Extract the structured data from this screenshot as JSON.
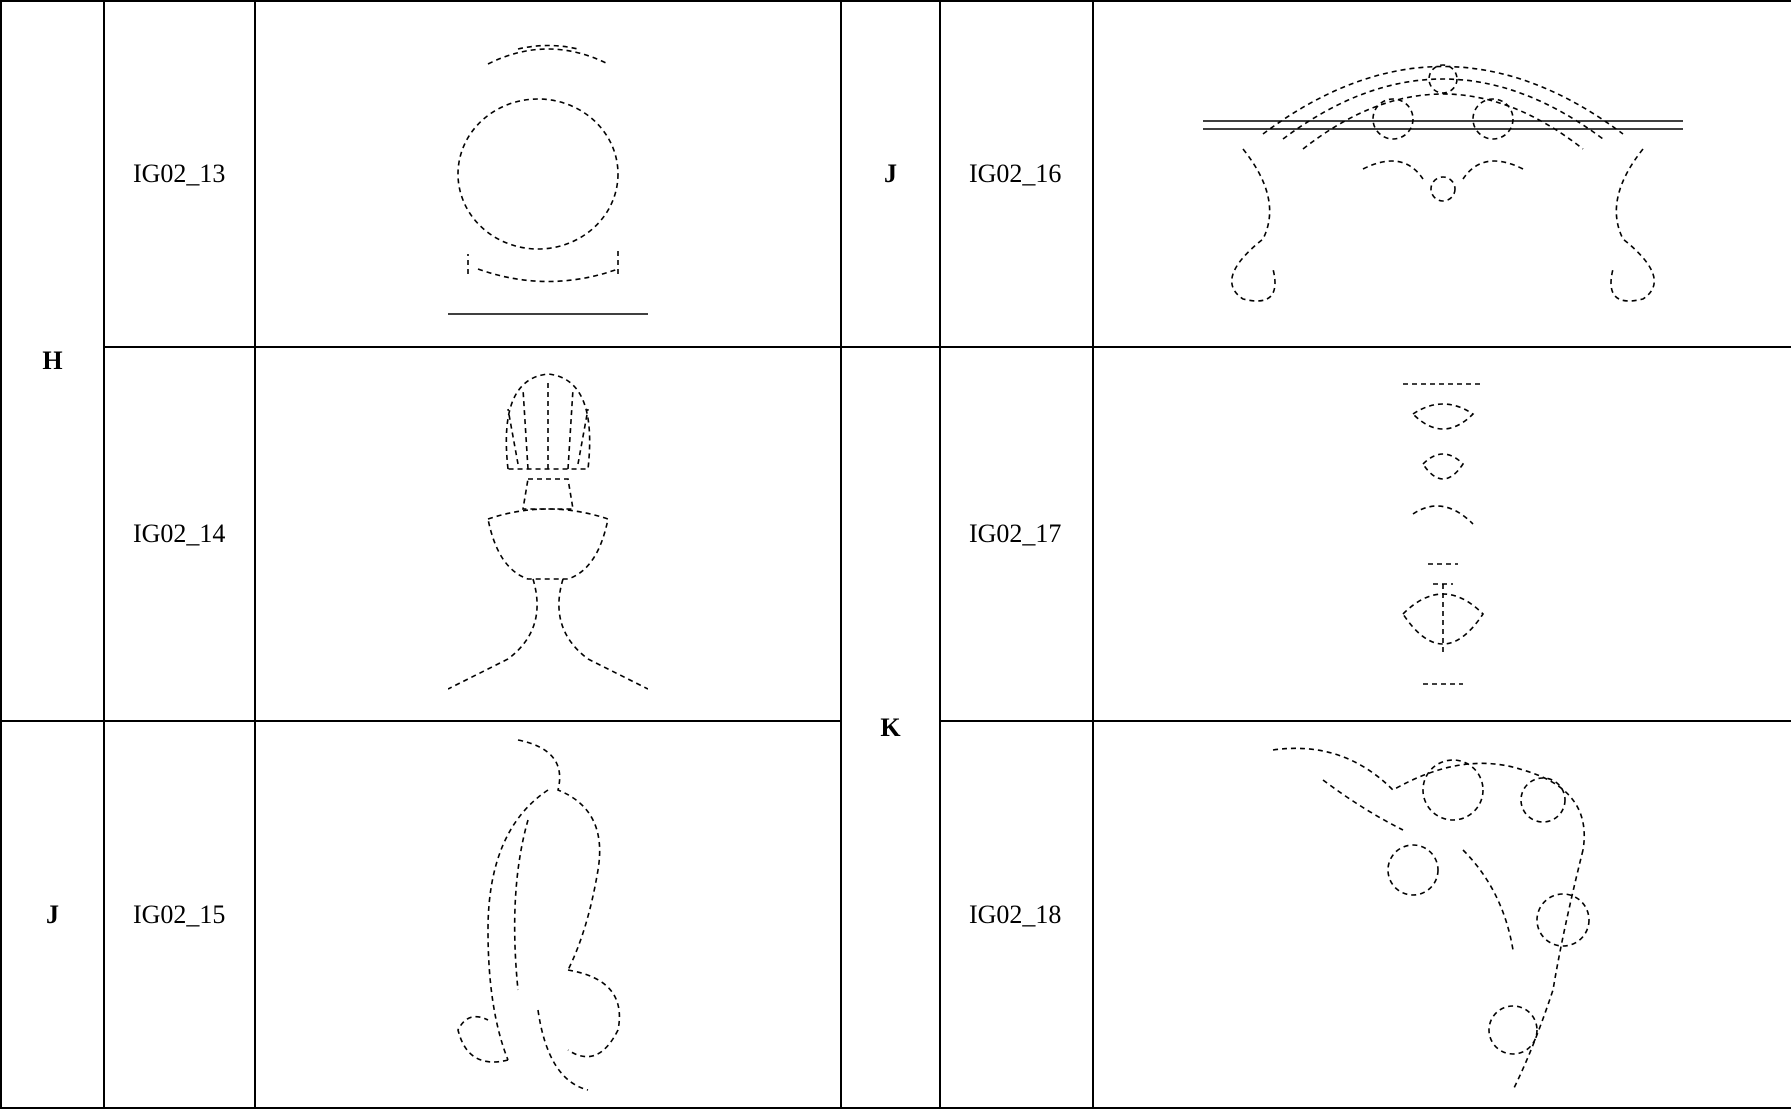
{
  "left": [
    {
      "group": "H",
      "codes": [
        "IG02_13",
        "IG02_14"
      ]
    },
    {
      "group": "J",
      "codes": [
        "IG02_15"
      ]
    }
  ],
  "right": [
    {
      "group": "J",
      "codes": [
        "IG02_16"
      ]
    },
    {
      "group": "K",
      "codes": [
        "IG02_17",
        "IG02_18"
      ]
    }
  ]
}
